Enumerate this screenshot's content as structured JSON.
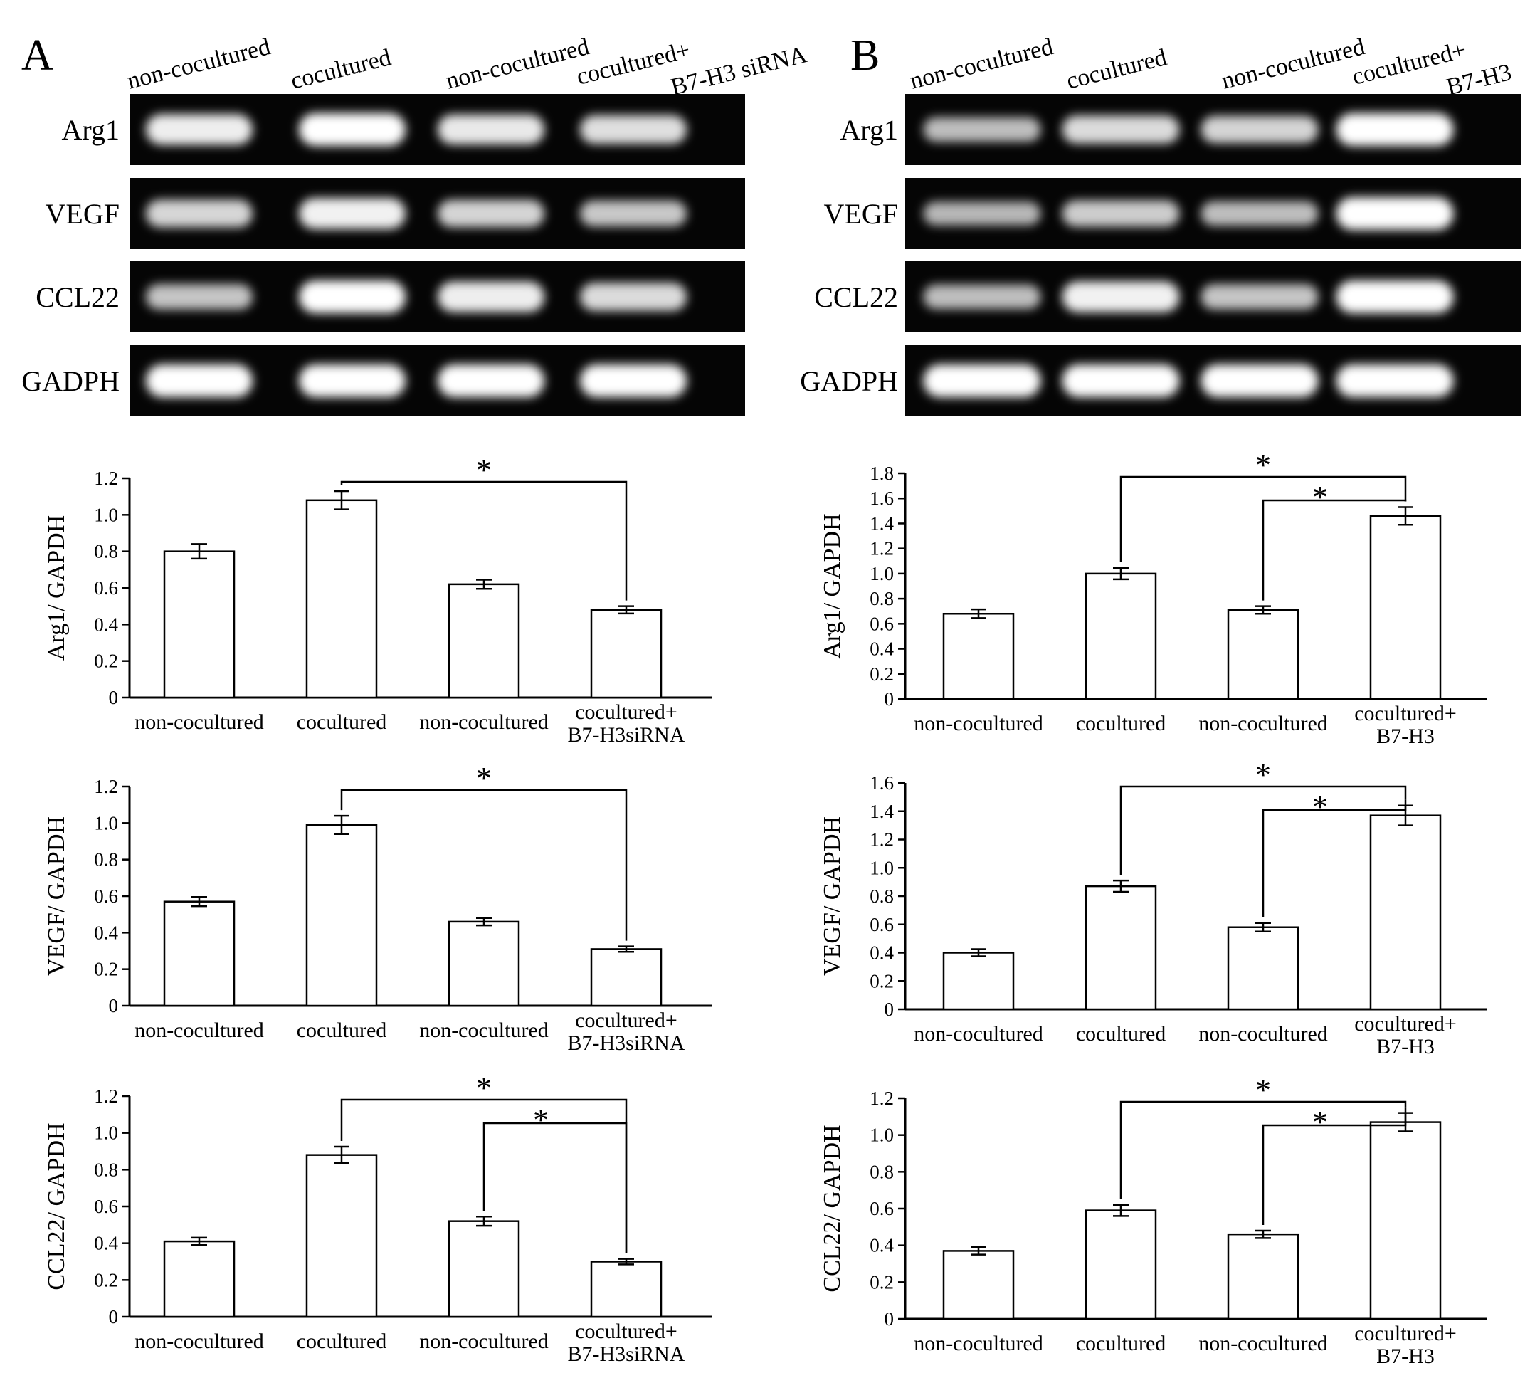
{
  "panels": [
    {
      "letter": "A",
      "gel": {
        "lane_headers": [
          {
            "lines": [
              "non-cocultured"
            ]
          },
          {
            "lines": [
              "cocultured"
            ]
          },
          {
            "lines": [
              "non-cocultured"
            ]
          },
          {
            "lines": [
              "cocultured+",
              "B7-H3 siRNA"
            ]
          }
        ],
        "rows": [
          {
            "label": "Arg1",
            "band_intensity": [
              0.88,
              1.0,
              0.85,
              0.78
            ]
          },
          {
            "label": "VEGF",
            "band_intensity": [
              0.72,
              0.9,
              0.7,
              0.62
            ]
          },
          {
            "label": "CCL22",
            "band_intensity": [
              0.6,
              1.0,
              0.88,
              0.75
            ]
          },
          {
            "label": "GADPH",
            "band_intensity": [
              1.0,
              1.0,
              1.0,
              1.0
            ]
          }
        ]
      }
    },
    {
      "letter": "B",
      "gel": {
        "lane_headers": [
          {
            "lines": [
              "non-cocultured"
            ]
          },
          {
            "lines": [
              "cocultured"
            ]
          },
          {
            "lines": [
              "non-cocultured"
            ]
          },
          {
            "lines": [
              "cocultured+",
              "B7-H3"
            ]
          }
        ],
        "rows": [
          {
            "label": "Arg1",
            "band_intensity": [
              0.55,
              0.75,
              0.7,
              1.0
            ]
          },
          {
            "label": "VEGF",
            "band_intensity": [
              0.5,
              0.65,
              0.55,
              1.0
            ]
          },
          {
            "label": "CCL22",
            "band_intensity": [
              0.55,
              0.9,
              0.6,
              1.0
            ]
          },
          {
            "label": "GADPH",
            "band_intensity": [
              1.0,
              1.0,
              1.0,
              1.0
            ]
          }
        ]
      }
    }
  ],
  "chart_data": [
    {
      "type": "bar",
      "panel": "A",
      "categories": [
        [
          "non-cocultured"
        ],
        [
          "cocultured"
        ],
        [
          "non-cocultured"
        ],
        [
          "cocultured+",
          "B7-H3siRNA"
        ]
      ],
      "values": [
        0.8,
        1.08,
        0.62,
        0.48
      ],
      "errors": [
        0.04,
        0.05,
        0.025,
        0.02
      ],
      "ylabel": "Arg1/ GAPDH",
      "ylim": [
        0,
        1.2
      ],
      "yticks": [
        "0",
        "0.2",
        "0.4",
        "0.6",
        "0.8",
        "1.0",
        "1.2"
      ],
      "significance": [
        {
          "from": 1,
          "to": 3,
          "level": 0,
          "label": "*"
        }
      ]
    },
    {
      "type": "bar",
      "panel": "A",
      "categories": [
        [
          "non-cocultured"
        ],
        [
          "cocultured"
        ],
        [
          "non-cocultured"
        ],
        [
          "cocultured+",
          "B7-H3siRNA"
        ]
      ],
      "values": [
        0.57,
        0.99,
        0.46,
        0.31
      ],
      "errors": [
        0.025,
        0.05,
        0.02,
        0.015
      ],
      "ylabel": "VEGF/ GAPDH",
      "ylim": [
        0,
        1.2
      ],
      "yticks": [
        "0",
        "0.2",
        "0.4",
        "0.6",
        "0.8",
        "1.0",
        "1.2"
      ],
      "significance": [
        {
          "from": 1,
          "to": 3,
          "level": 0,
          "label": "*"
        }
      ]
    },
    {
      "type": "bar",
      "panel": "A",
      "categories": [
        [
          "non-cocultured"
        ],
        [
          "cocultured"
        ],
        [
          "non-cocultured"
        ],
        [
          "cocultured+",
          "B7-H3siRNA"
        ]
      ],
      "values": [
        0.41,
        0.88,
        0.52,
        0.3
      ],
      "errors": [
        0.02,
        0.045,
        0.025,
        0.015
      ],
      "ylabel": "CCL22/ GAPDH",
      "ylim": [
        0,
        1.2
      ],
      "yticks": [
        "0",
        "0.2",
        "0.4",
        "0.6",
        "0.8",
        "1.0",
        "1.2"
      ],
      "significance": [
        {
          "from": 1,
          "to": 3,
          "level": 0,
          "label": "*"
        },
        {
          "from": 2,
          "to": 3,
          "level": 1,
          "label": "*"
        }
      ]
    },
    {
      "type": "bar",
      "panel": "B",
      "categories": [
        [
          "non-cocultured"
        ],
        [
          "cocultured"
        ],
        [
          "non-cocultured"
        ],
        [
          "cocultured+",
          "B7-H3"
        ]
      ],
      "values": [
        0.68,
        1.0,
        0.71,
        1.46
      ],
      "errors": [
        0.035,
        0.045,
        0.03,
        0.07
      ],
      "ylabel": "Arg1/ GAPDH",
      "ylim": [
        0,
        1.8
      ],
      "yticks": [
        "0",
        "0.2",
        "0.4",
        "0.6",
        "0.8",
        "1.0",
        "1.2",
        "1.4",
        "1.6",
        "1.8"
      ],
      "significance": [
        {
          "from": 1,
          "to": 3,
          "level": 0,
          "label": "*"
        },
        {
          "from": 2,
          "to": 3,
          "level": 1,
          "label": "*"
        }
      ]
    },
    {
      "type": "bar",
      "panel": "B",
      "categories": [
        [
          "non-cocultured"
        ],
        [
          "cocultured"
        ],
        [
          "non-cocultured"
        ],
        [
          "cocultured+",
          "B7-H3"
        ]
      ],
      "values": [
        0.4,
        0.87,
        0.58,
        1.37
      ],
      "errors": [
        0.025,
        0.04,
        0.03,
        0.07
      ],
      "ylabel": "VEGF/ GAPDH",
      "ylim": [
        0,
        1.6
      ],
      "yticks": [
        "0",
        "0.2",
        "0.4",
        "0.6",
        "0.8",
        "1.0",
        "1.2",
        "1.4",
        "1.6"
      ],
      "significance": [
        {
          "from": 1,
          "to": 3,
          "level": 0,
          "label": "*"
        },
        {
          "from": 2,
          "to": 3,
          "level": 1,
          "label": "*"
        }
      ]
    },
    {
      "type": "bar",
      "panel": "B",
      "categories": [
        [
          "non-cocultured"
        ],
        [
          "cocultured"
        ],
        [
          "non-cocultured"
        ],
        [
          "cocultured+",
          "B7-H3"
        ]
      ],
      "values": [
        0.37,
        0.59,
        0.46,
        1.07
      ],
      "errors": [
        0.02,
        0.03,
        0.02,
        0.05
      ],
      "ylabel": "CCL22/ GAPDH",
      "ylim": [
        0,
        1.2
      ],
      "yticks": [
        "0",
        "0.2",
        "0.4",
        "0.6",
        "0.8",
        "1.0",
        "1.2"
      ],
      "significance": [
        {
          "from": 1,
          "to": 3,
          "level": 0,
          "label": "*"
        },
        {
          "from": 2,
          "to": 3,
          "level": 1,
          "label": "*"
        }
      ]
    }
  ]
}
